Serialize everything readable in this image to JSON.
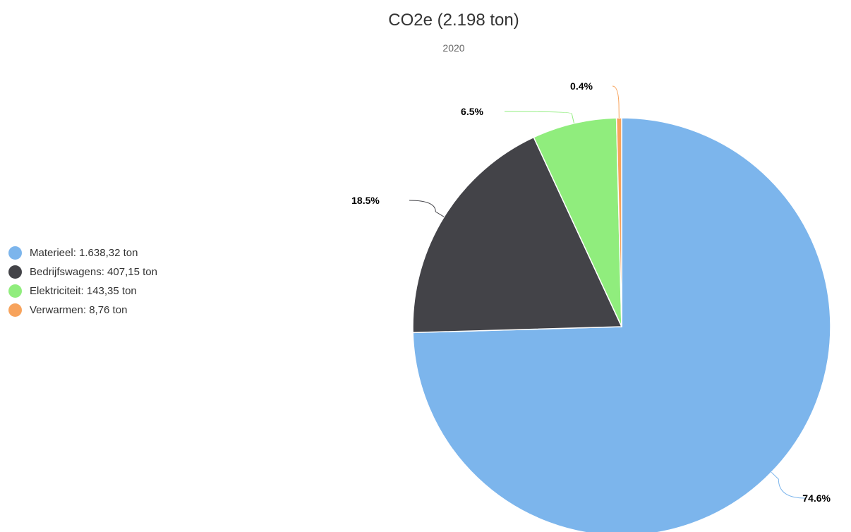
{
  "chart_data": {
    "type": "pie",
    "title": "CO2e (2.198 ton)",
    "subtitle": "2020",
    "legend_position": "left",
    "slices": [
      {
        "name": "Materieel",
        "legend_label": "Materieel: 1.638,32 ton",
        "value": 1638.32,
        "percent_label": "74.6%",
        "color": "#7cb5ec"
      },
      {
        "name": "Bedrijfswagens",
        "legend_label": "Bedrijfswagens: 407,15 ton",
        "value": 407.15,
        "percent_label": "18.5%",
        "color": "#434348"
      },
      {
        "name": "Elektriciteit",
        "legend_label": "Elektriciteit: 143,35 ton",
        "value": 143.35,
        "percent_label": "6.5%",
        "color": "#90ed7d"
      },
      {
        "name": "Verwarmen",
        "legend_label": "Verwarmen: 8,76 ton",
        "value": 8.76,
        "percent_label": "0.4%",
        "color": "#f7a35c"
      }
    ]
  }
}
